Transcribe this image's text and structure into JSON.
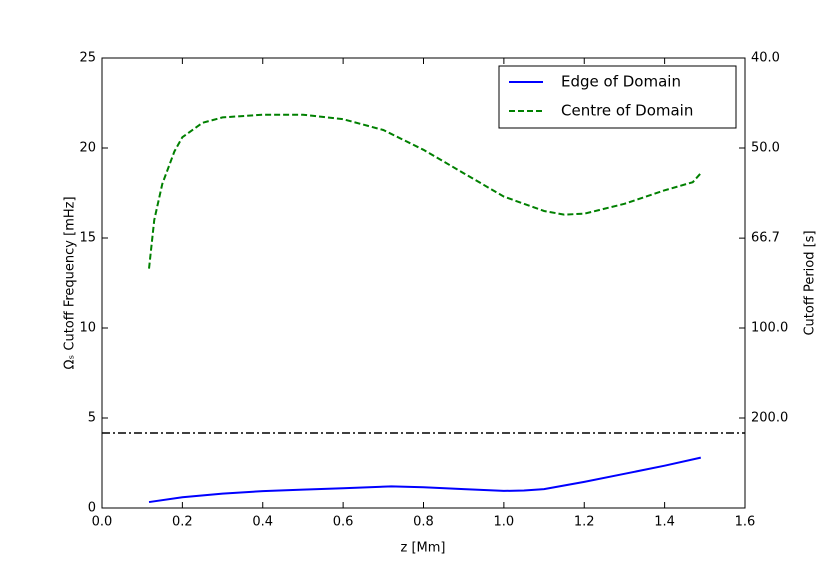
{
  "chart_data": {
    "type": "line",
    "xlabel": "z [Mm]",
    "ylabel": "Ωₛ Cutoff Frequency [mHz]",
    "y2label": "Cutoff Period [s]",
    "xlim": [
      0,
      1.6
    ],
    "xticks": [
      {
        "value": 0,
        "label": "0.0"
      },
      {
        "value": 0.2,
        "label": "0.2"
      },
      {
        "value": 0.4,
        "label": "0.4"
      },
      {
        "value": 0.6,
        "label": "0.6"
      },
      {
        "value": 0.8,
        "label": "0.8"
      },
      {
        "value": 1.0,
        "label": "1.0"
      },
      {
        "value": 1.2,
        "label": "1.2"
      },
      {
        "value": 1.4,
        "label": "1.4"
      },
      {
        "value": 1.6,
        "label": "1.6"
      }
    ],
    "ylim": [
      0,
      25
    ],
    "yticks": [
      0,
      5,
      10,
      15,
      20,
      25
    ],
    "y2scale": "reciprocal",
    "y2ticks": [
      {
        "value": 40,
        "label": "40.0"
      },
      {
        "value": 50,
        "label": "50.0"
      },
      {
        "value": 66.7,
        "label": "66.7"
      },
      {
        "value": 100,
        "label": "100.0"
      },
      {
        "value": 200,
        "label": "200.0"
      }
    ],
    "hline": 4.17,
    "legend": "upper right",
    "series": [
      {
        "name": "Edge of Domain",
        "color": "#0000ff",
        "style": "solid",
        "x": [
          0.117,
          0.2,
          0.3,
          0.4,
          0.5,
          0.6,
          0.72,
          0.8,
          0.9,
          1.0,
          1.05,
          1.1,
          1.2,
          1.3,
          1.4,
          1.49
        ],
        "values": [
          0.33,
          0.6,
          0.8,
          0.94,
          1.02,
          1.1,
          1.2,
          1.15,
          1.05,
          0.95,
          0.97,
          1.05,
          1.45,
          1.9,
          2.35,
          2.8
        ]
      },
      {
        "name": "Centre of Domain",
        "color": "#008000",
        "style": "dashed",
        "x": [
          0.117,
          0.13,
          0.15,
          0.18,
          0.2,
          0.25,
          0.3,
          0.4,
          0.5,
          0.6,
          0.7,
          0.8,
          0.9,
          1.0,
          1.1,
          1.15,
          1.2,
          1.3,
          1.4,
          1.47,
          1.49
        ],
        "values": [
          13.3,
          16.0,
          18.0,
          19.8,
          20.6,
          21.4,
          21.7,
          21.85,
          21.85,
          21.6,
          21.0,
          19.9,
          18.6,
          17.3,
          16.5,
          16.3,
          16.35,
          16.9,
          17.65,
          18.1,
          18.6
        ]
      }
    ]
  }
}
